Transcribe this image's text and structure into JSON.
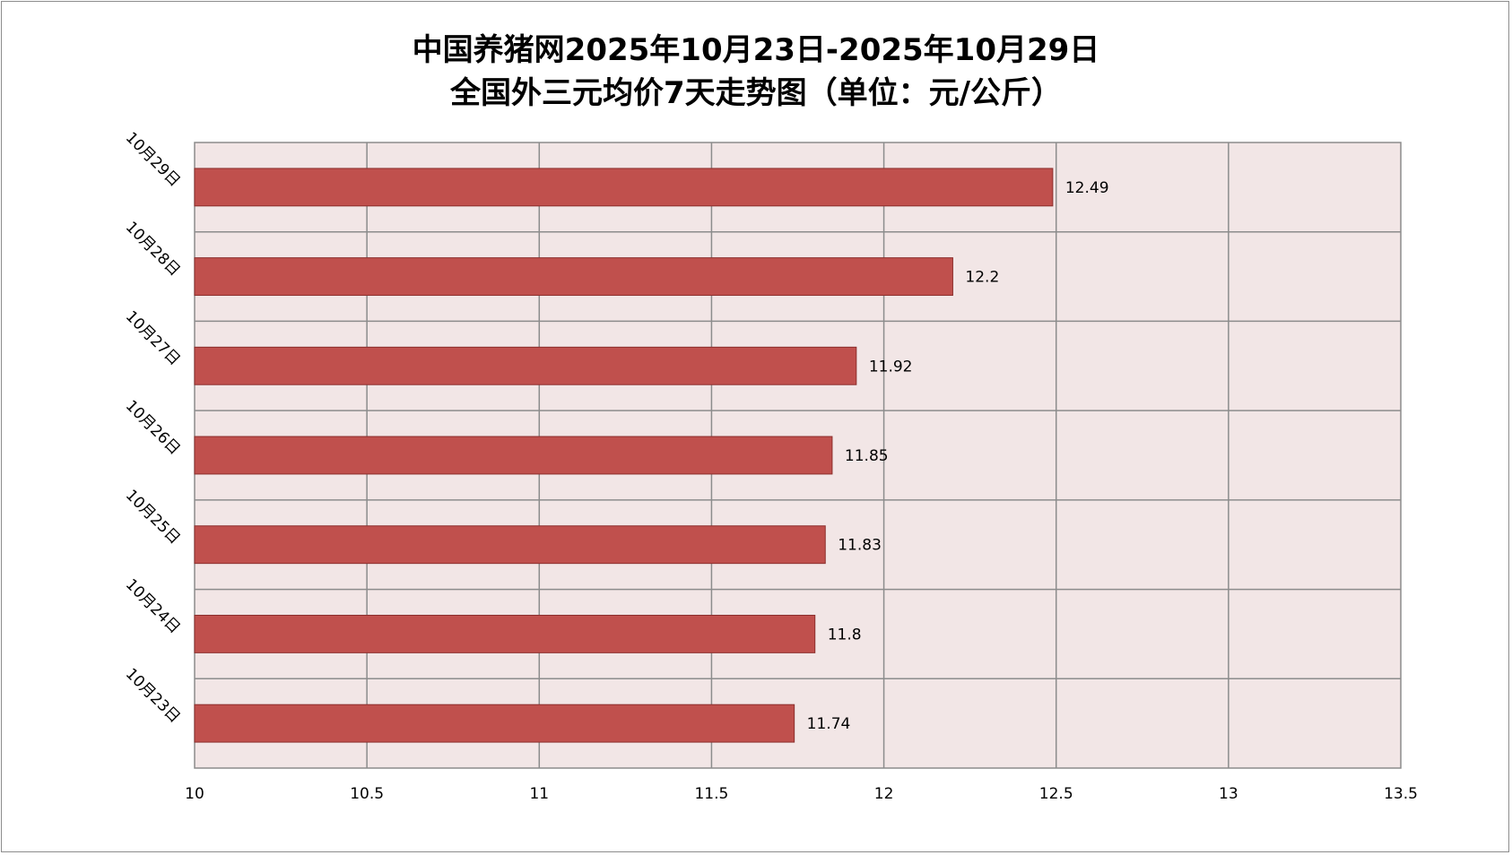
{
  "chart_data": {
    "type": "bar",
    "orientation": "horizontal",
    "title": [
      "中国养猪网2025年10月23日-2025年10月29日",
      "全国外三元均价7天走势图（单位：元/公斤）"
    ],
    "categories": [
      "10月29日",
      "10月28日",
      "10月27日",
      "10月26日",
      "10月25日",
      "10月24日",
      "10月23日"
    ],
    "values": [
      12.49,
      12.2,
      11.92,
      11.85,
      11.83,
      11.8,
      11.74
    ],
    "data_labels": [
      "12.49",
      "12.2",
      "11.92",
      "11.85",
      "11.83",
      "11.8",
      "11.74"
    ],
    "xlim": [
      10,
      13.5
    ],
    "xticks": [
      10,
      10.5,
      11,
      11.5,
      12,
      12.5,
      13,
      13.5
    ],
    "xtick_labels": [
      "10",
      "10.5",
      "11",
      "11.5",
      "12",
      "12.5",
      "13",
      "13.5"
    ],
    "xlabel": "",
    "ylabel": "",
    "grid": true,
    "legend": "none",
    "colors": {
      "bar_fill": "#c0504d",
      "bar_stroke": "#8c2f2d",
      "plot_background": "#f2e6e6",
      "grid": "#8c8c8c"
    }
  }
}
